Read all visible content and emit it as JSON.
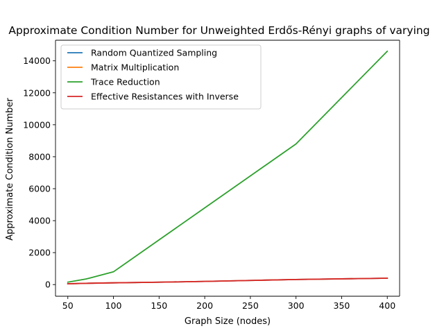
{
  "chart_data": {
    "type": "line",
    "title": "Approximate Condition Number for Unweighted Erdős-Rényi graphs of varying",
    "xlabel": "Graph Size (nodes)",
    "ylabel": "Approximate Condition Number",
    "xlim": [
      36.5,
      413.5
    ],
    "ylim": [
      -728,
      15288
    ],
    "x_ticks": [
      50,
      100,
      150,
      200,
      250,
      300,
      350,
      400
    ],
    "y_ticks": [
      0,
      2000,
      4000,
      6000,
      8000,
      10000,
      12000,
      14000
    ],
    "legend_position": "upper left",
    "grid": false,
    "series": [
      {
        "name": "Random Quantized Sampling",
        "color": "#1f77b4",
        "x": [
          50,
          70,
          100,
          150,
          200,
          250,
          300,
          400
        ],
        "y": [
          50,
          80,
          110,
          150,
          200,
          260,
          320,
          400
        ]
      },
      {
        "name": "Matrix Multiplication",
        "color": "#ff7f0e",
        "x": [
          50,
          70,
          100,
          150,
          200,
          250,
          300,
          400
        ],
        "y": [
          50,
          80,
          110,
          150,
          200,
          260,
          320,
          400
        ]
      },
      {
        "name": "Trace Reduction",
        "color": "#2ca02c",
        "x": [
          50,
          70,
          100,
          200,
          300,
          400
        ],
        "y": [
          150,
          350,
          800,
          4800,
          8800,
          14600
        ]
      },
      {
        "name": "Effective Resistances with Inverse",
        "color": "#d62728",
        "x": [
          50,
          70,
          100,
          150,
          200,
          250,
          300,
          400
        ],
        "y": [
          50,
          80,
          110,
          150,
          200,
          260,
          320,
          400
        ]
      }
    ]
  }
}
